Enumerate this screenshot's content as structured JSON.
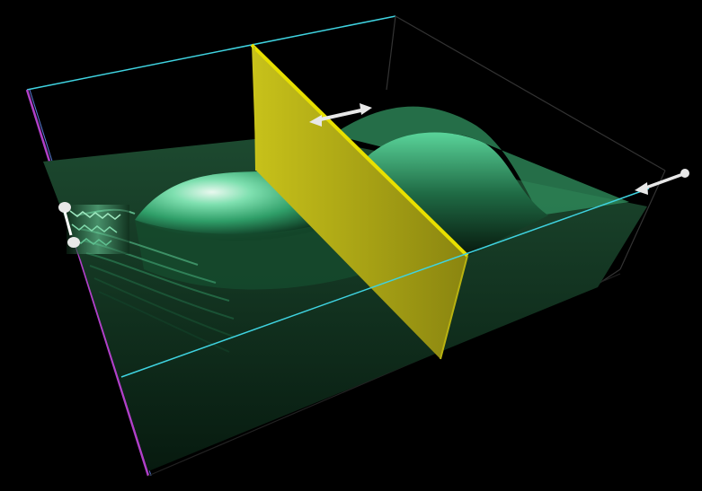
{
  "scene": {
    "background": "#000000",
    "colors": {
      "bounding_box_cyan": "#3fd3e0",
      "bounding_box_dark": "#2a2a2a",
      "left_edge_magenta": "#b040c8",
      "surface_dark": "#0f2a1a",
      "surface_green": "#3cc88a",
      "surface_highlight": "#e6f7ee",
      "barrier_yellow": "#a09a10",
      "barrier_edge": "#e8e000",
      "handle_white": "#e8e8e8"
    },
    "objects": [
      "wave-surface",
      "barrier-plane",
      "bounding-box",
      "barrier-drag-handle",
      "scale-drag-handle",
      "source-handle-top",
      "source-handle-bottom"
    ]
  }
}
